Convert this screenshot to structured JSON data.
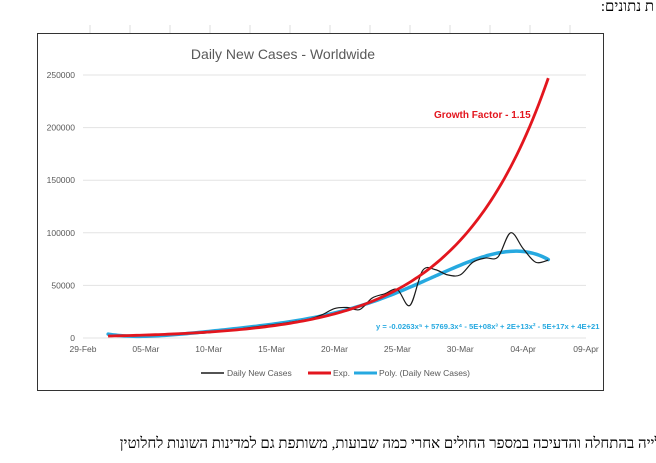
{
  "document": {
    "top_text": "ת נתונים:",
    "bottom_text": "עלייה בהתחלה והדעיכה במספר החולים אחרי כמה שבועות, משותפת גם למדינות השונות לחלוטין"
  },
  "colors": {
    "daily": "#1a1a1a",
    "exp": "#e3161e",
    "poly": "#26a9e0",
    "grid": "#e3e3e3",
    "axis_text": "#595959"
  },
  "chart_data": {
    "type": "line",
    "title": "Daily New Cases - Worldwide",
    "xlabel": "",
    "ylabel": "",
    "x_ticks": [
      "29-Feb",
      "05-Mar",
      "10-Mar",
      "15-Mar",
      "20-Mar",
      "25-Mar",
      "30-Mar",
      "04-Apr",
      "09-Apr"
    ],
    "y_ticks": [
      "0",
      "50000",
      "100000",
      "150000",
      "200000",
      "250000"
    ],
    "xlim": [
      "2020-02-29",
      "2020-04-09"
    ],
    "ylim": [
      0,
      250000
    ],
    "grid": "horizontal",
    "legend_placement": "bottom",
    "x": [
      "2020-03-02",
      "2020-03-03",
      "2020-03-04",
      "2020-03-05",
      "2020-03-06",
      "2020-03-07",
      "2020-03-08",
      "2020-03-09",
      "2020-03-10",
      "2020-03-11",
      "2020-03-12",
      "2020-03-13",
      "2020-03-14",
      "2020-03-15",
      "2020-03-16",
      "2020-03-17",
      "2020-03-18",
      "2020-03-19",
      "2020-03-20",
      "2020-03-21",
      "2020-03-22",
      "2020-03-23",
      "2020-03-24",
      "2020-03-25",
      "2020-03-26",
      "2020-03-27",
      "2020-03-28",
      "2020-03-29",
      "2020-03-30",
      "2020-03-31",
      "2020-04-01",
      "2020-04-02",
      "2020-04-03",
      "2020-04-04",
      "2020-04-05",
      "2020-04-06"
    ],
    "series": [
      {
        "name": "Daily New Cases",
        "values": [
          2000,
          2500,
          2300,
          2800,
          3500,
          4000,
          4200,
          4500,
          5000,
          6500,
          7500,
          9500,
          11000,
          12500,
          14000,
          16000,
          18000,
          22000,
          28000,
          29000,
          27000,
          38000,
          42000,
          46000,
          31000,
          64000,
          65000,
          60000,
          60000,
          72000,
          76000,
          77000,
          100000,
          85000,
          72000,
          74000
        ]
      },
      {
        "name": "Exp.",
        "type": "exponential-trendline",
        "growth_factor": 1.15,
        "start_value": 1855
      },
      {
        "name": "Poly. (Daily New Cases)",
        "type": "polynomial-trendline",
        "order": 5
      }
    ],
    "annotations": [
      {
        "text": "Growth Factor - 1.15",
        "color": "#e3161e"
      },
      {
        "text": "y = -0.0263x⁵ + 5769.3x⁴ - 5E+08x³ + 2E+13x² - 5E+17x + 4E+21",
        "color": "#26a9e0"
      }
    ]
  }
}
